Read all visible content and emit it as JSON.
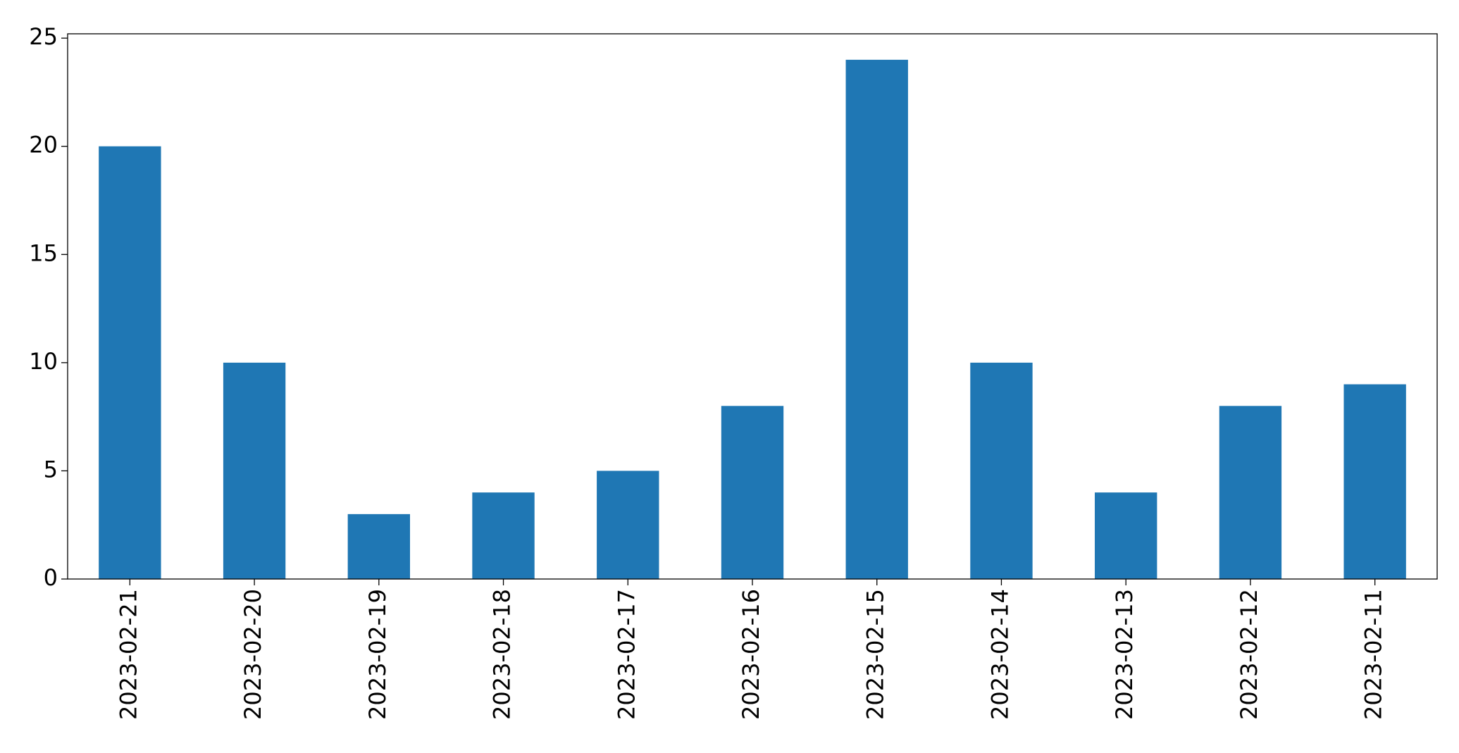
{
  "chart_data": {
    "type": "bar",
    "categories": [
      "2023-02-21",
      "2023-02-20",
      "2023-02-19",
      "2023-02-18",
      "2023-02-17",
      "2023-02-16",
      "2023-02-15",
      "2023-02-14",
      "2023-02-13",
      "2023-02-12",
      "2023-02-11"
    ],
    "values": [
      20,
      10,
      3,
      4,
      5,
      8,
      24,
      10,
      4,
      8,
      9
    ],
    "color": "#1f77b4",
    "ylim": [
      0,
      25.2
    ],
    "yticks": [
      0,
      5,
      10,
      15,
      20,
      25
    ],
    "grid": false
  }
}
